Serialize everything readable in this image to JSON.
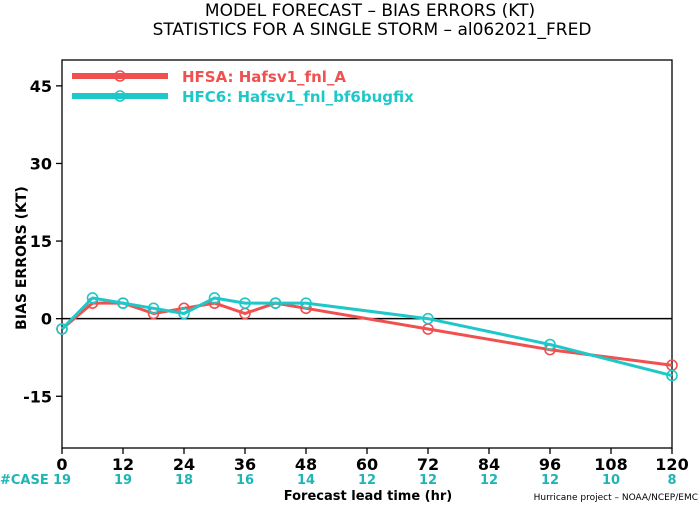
{
  "chart_data": {
    "type": "line",
    "title": "MODEL FORECAST – BIAS ERRORS (KT)",
    "subtitle": "STATISTICS FOR A SINGLE STORM – al062021_FRED",
    "xlabel": "Forecast lead time (hr)",
    "ylabel": "BIAS ERRORS (KT)",
    "xlim": [
      0,
      120
    ],
    "ylim": [
      -25,
      50
    ],
    "x_ticks": [
      "0",
      "12",
      "24",
      "36",
      "48",
      "60",
      "72",
      "84",
      "96",
      "108",
      "120"
    ],
    "y_ticks": [
      "45",
      "30",
      "15",
      "0",
      "-15"
    ],
    "grid": false,
    "zero_line": true,
    "legend_position": "top-left",
    "series": [
      {
        "name": "HFSA: Hafsv1_fnl_A",
        "color": "#f0504f",
        "points": [
          [
            0,
            -2
          ],
          [
            6,
            3
          ],
          [
            12,
            3
          ],
          [
            18,
            1
          ],
          [
            24,
            2
          ],
          [
            30,
            3
          ],
          [
            36,
            1
          ],
          [
            42,
            3
          ],
          [
            48,
            2
          ],
          [
            72,
            -2
          ],
          [
            96,
            -6
          ],
          [
            120,
            -9
          ]
        ]
      },
      {
        "name": "HFC6: Hafsv1_fnl_bf6bugfix",
        "color": "#1fc8c8",
        "points": [
          [
            0,
            -2
          ],
          [
            6,
            4
          ],
          [
            12,
            3
          ],
          [
            18,
            2
          ],
          [
            24,
            1
          ],
          [
            30,
            4
          ],
          [
            36,
            3
          ],
          [
            42,
            3
          ],
          [
            48,
            3
          ],
          [
            72,
            0
          ],
          [
            96,
            -5
          ],
          [
            120,
            -11
          ]
        ]
      }
    ],
    "case_label": "#CASE",
    "case_counts": [
      "19",
      "19",
      "18",
      "16",
      "14",
      "12",
      "12",
      "12",
      "12",
      "10",
      "8"
    ],
    "credit": "Hurricane project – NOAA/NCEP/EMC"
  }
}
